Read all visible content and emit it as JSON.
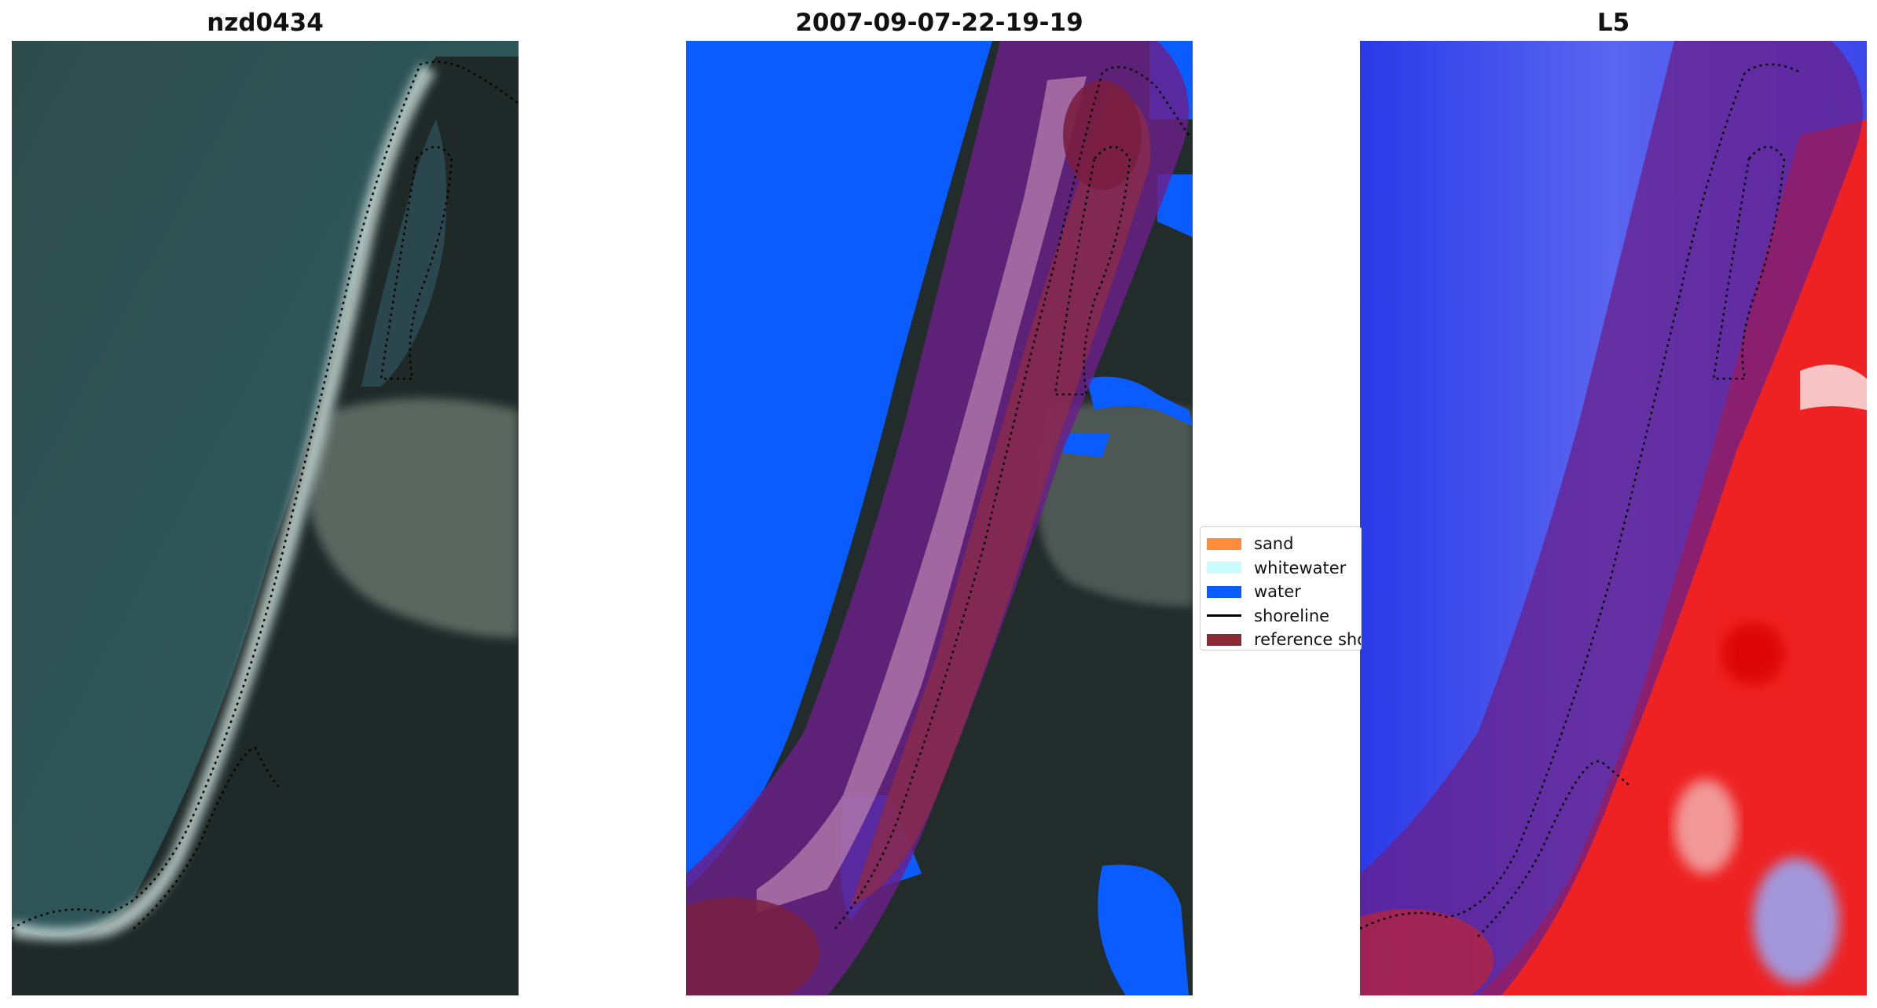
{
  "panels": [
    {
      "title": "nzd0434"
    },
    {
      "title": "2007-09-07-22-19-19"
    },
    {
      "title": "L5"
    }
  ],
  "legend": {
    "items": [
      {
        "label": "sand",
        "color": "#ff8c3a",
        "kind": "patch"
      },
      {
        "label": "whitewater",
        "color": "#c8fbff",
        "kind": "patch"
      },
      {
        "label": "water",
        "color": "#0a5cff",
        "kind": "patch"
      },
      {
        "label": "shoreline",
        "color": "#000000",
        "kind": "line"
      },
      {
        "label": "reference shoreline buffer",
        "color": "#8b2a34",
        "kind": "patch"
      }
    ]
  },
  "colors": {
    "water_class": "#0a5cff",
    "buffer_overlay": "#6a1f8a",
    "reference_dotted_line": "#000000",
    "index_negative": "#2233ee",
    "index_positive": "#ee1111"
  }
}
